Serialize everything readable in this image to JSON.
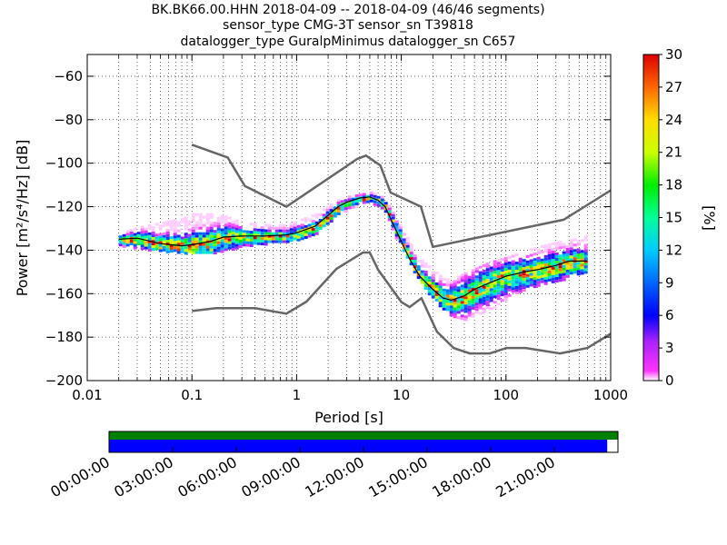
{
  "title": {
    "line1": "BK.BK66.00.HHN   2018-04-09 -- 2018-04-09  (46/46 segments)",
    "line2": "sensor_type CMG-3T sensor_sn T39818",
    "line3": "datalogger_type GuralpMinimus datalogger_sn C657"
  },
  "chart_data": {
    "type": "heatmap",
    "xlabel": "Period [s]",
    "ylabel": "Power [m²/s⁴/Hz] [dB]",
    "x_scale": "log",
    "xlim": [
      0.01,
      1000
    ],
    "ylim": [
      -200,
      -50
    ],
    "x_ticks": [
      0.01,
      0.1,
      1,
      10,
      100,
      1000
    ],
    "x_tick_labels": [
      "0.01",
      "0.1",
      "1",
      "10",
      "100",
      "1000"
    ],
    "y_ticks": [
      -200,
      -180,
      -160,
      -140,
      -120,
      -100,
      -80,
      -60
    ],
    "y_tick_labels": [
      "−200",
      "−180",
      "−160",
      "−140",
      "−120",
      "−100",
      "−80",
      "−60"
    ],
    "grid": true,
    "colorbar": {
      "label": "[%]",
      "range": [
        0,
        30
      ],
      "ticks": [
        0,
        3,
        6,
        9,
        12,
        15,
        18,
        21,
        24,
        27,
        30
      ],
      "tick_labels": [
        "0",
        "3",
        "6",
        "9",
        "12",
        "15",
        "18",
        "21",
        "24",
        "27",
        "30"
      ]
    },
    "noise_models": {
      "high": {
        "color": "#666666",
        "x": [
          0.1,
          0.22,
          0.32,
          0.8,
          3.8,
          4.6,
          6.3,
          7.9,
          15.4,
          20,
          354.8,
          1000
        ],
        "y": [
          -91.5,
          -97.4,
          -110.5,
          -120,
          -98,
          -96.5,
          -101,
          -113.5,
          -120,
          -138.5,
          -126,
          -112.5
        ]
      },
      "low": {
        "color": "#666666",
        "x": [
          0.1,
          0.17,
          0.4,
          0.8,
          1.24,
          2.4,
          4.3,
          5,
          6,
          10,
          12,
          15.6,
          21.9,
          31.6,
          45,
          70,
          101,
          154,
          328,
          600,
          1000
        ],
        "y": [
          -168,
          -166.7,
          -166.7,
          -169.2,
          -163.7,
          -148.6,
          -141.1,
          -141.1,
          -149,
          -163.8,
          -166.2,
          -162.1,
          -177.5,
          -185,
          -187.5,
          -187.5,
          -185,
          -185,
          -187.5,
          -185,
          -178.5
        ]
      }
    },
    "median_curve": {
      "color": "#000000",
      "x": [
        0.02,
        0.03,
        0.05,
        0.08,
        0.1,
        0.15,
        0.2,
        0.3,
        0.5,
        0.8,
        1,
        1.5,
        2,
        2.5,
        3,
        4,
        5,
        6,
        7,
        8,
        10,
        12,
        15,
        20,
        25,
        30,
        40,
        50,
        70,
        100,
        150,
        200,
        300,
        400,
        600
      ],
      "y": [
        -135,
        -134.5,
        -137,
        -138,
        -137.5,
        -136,
        -134,
        -133.5,
        -133.5,
        -133,
        -132,
        -129,
        -124,
        -120,
        -118,
        -116,
        -115.5,
        -117,
        -120,
        -126,
        -136,
        -144,
        -152,
        -158,
        -162,
        -163,
        -161,
        -158,
        -155,
        -152,
        -150,
        -149,
        -147,
        -145,
        -145
      ]
    },
    "density_band": {
      "x": [
        0.02,
        0.03,
        0.05,
        0.08,
        0.1,
        0.15,
        0.2,
        0.3,
        0.5,
        0.8,
        1,
        1.5,
        2,
        2.5,
        3,
        4,
        5,
        6,
        7,
        8,
        10,
        12,
        15,
        20,
        25,
        30,
        40,
        50,
        70,
        100,
        150,
        200,
        300,
        400,
        600
      ],
      "upper": [
        -132,
        -129,
        -127,
        -125,
        -123,
        -123,
        -124,
        -127,
        -128,
        -128,
        -126,
        -123,
        -119,
        -116,
        -115,
        -114,
        -113,
        -114,
        -117,
        -122,
        -130,
        -137,
        -144,
        -149,
        -153,
        -153,
        -150,
        -148,
        -145,
        -143,
        -140,
        -138,
        -136,
        -135,
        -133
      ],
      "lower": [
        -138,
        -139,
        -140,
        -141,
        -141,
        -141,
        -140,
        -138,
        -137,
        -136,
        -135,
        -132,
        -127,
        -123,
        -121,
        -119,
        -118,
        -120,
        -123,
        -130,
        -140,
        -147,
        -155,
        -163,
        -168,
        -171,
        -172,
        -169,
        -167,
        -162,
        -159,
        -156,
        -154,
        -152,
        -150
      ]
    }
  },
  "timeline": {
    "tick_labels": [
      "00:00:00",
      "03:00:00",
      "06:00:00",
      "09:00:00",
      "12:00:00",
      "15:00:00",
      "18:00:00",
      "21:00:00"
    ],
    "coverage_color": "#0000ff",
    "gap_color": "#ffffff",
    "psd_color": "#008000",
    "coverage_fraction": 0.979
  }
}
